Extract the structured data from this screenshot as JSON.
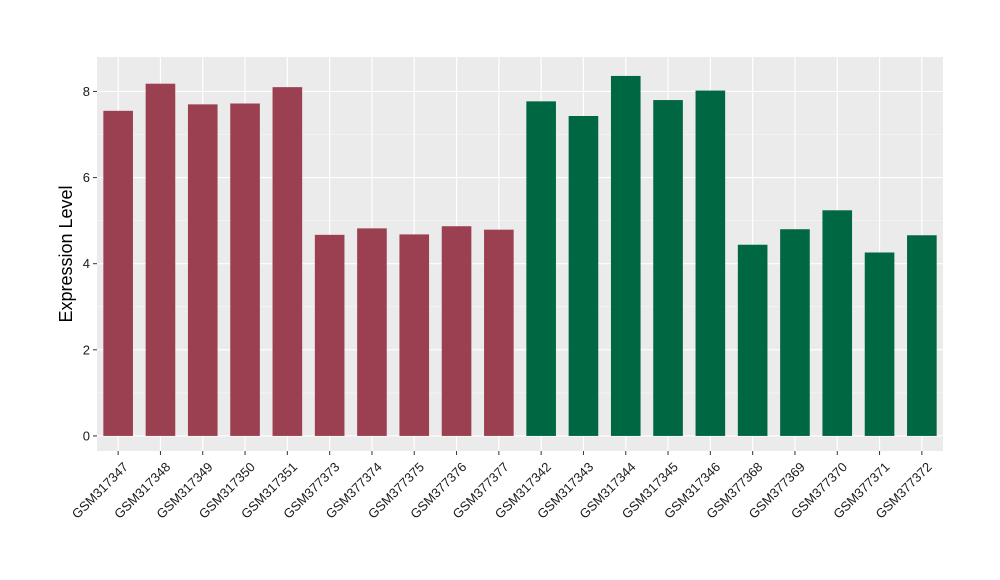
{
  "chart_data": {
    "type": "bar",
    "title": "",
    "xlabel": "",
    "ylabel": "Expression Level",
    "ylim": [
      -0.35,
      8.8
    ],
    "yticks": [
      0,
      2,
      4,
      6,
      8
    ],
    "grid": true,
    "panel_background": "#ebebeb",
    "categories": [
      "GSM317347",
      "GSM317348",
      "GSM317349",
      "GSM317350",
      "GSM317351",
      "GSM377373",
      "GSM377374",
      "GSM377375",
      "GSM377376",
      "GSM377377",
      "GSM317342",
      "GSM317343",
      "GSM317344",
      "GSM317345",
      "GSM317346",
      "GSM377368",
      "GSM377369",
      "GSM377370",
      "GSM377371",
      "GSM377372"
    ],
    "values": [
      7.55,
      8.18,
      7.7,
      7.72,
      8.1,
      4.67,
      4.82,
      4.68,
      4.87,
      4.79,
      7.77,
      7.43,
      8.36,
      7.8,
      8.02,
      4.44,
      4.8,
      5.24,
      4.26,
      4.66
    ],
    "bar_colors": [
      "#9b4050",
      "#9b4050",
      "#9b4050",
      "#9b4050",
      "#9b4050",
      "#9b4050",
      "#9b4050",
      "#9b4050",
      "#9b4050",
      "#9b4050",
      "#006743",
      "#006743",
      "#006743",
      "#006743",
      "#006743",
      "#006743",
      "#006743",
      "#006743",
      "#006743",
      "#006743"
    ]
  }
}
